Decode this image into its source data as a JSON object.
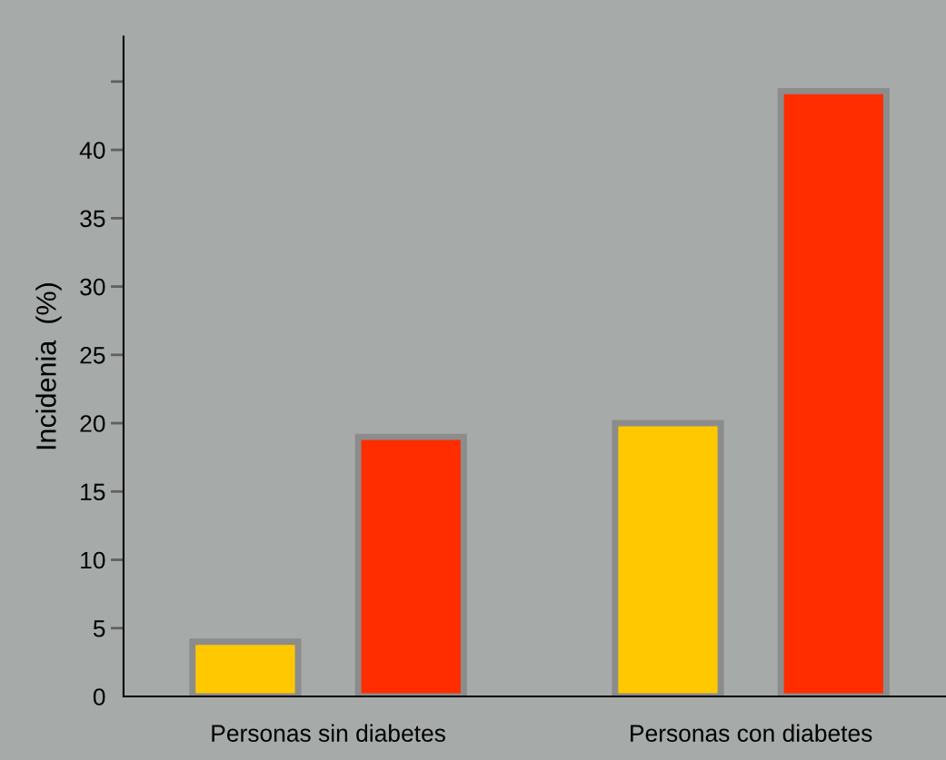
{
  "chart_data": {
    "type": "bar",
    "ylabel": "Incidenia  (%)",
    "categories": [
      "Personas sin diabetes",
      "Personas con diabetes"
    ],
    "series": [
      {
        "color": "#ffc800",
        "values": [
          4,
          20
        ]
      },
      {
        "color": "#ff2d00",
        "values": [
          19,
          44.3
        ]
      }
    ],
    "ylim": [
      0,
      48.3
    ],
    "yticks": [
      0,
      5,
      10,
      15,
      20,
      25,
      30,
      35,
      40,
      {
        "value": 45,
        "label": null
      }
    ],
    "grid": false,
    "legend": false
  }
}
